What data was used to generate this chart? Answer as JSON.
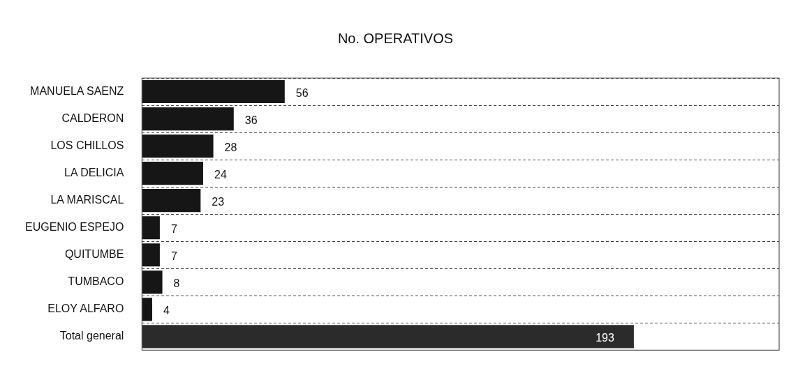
{
  "chart_data": {
    "type": "bar",
    "orientation": "horizontal",
    "title": "No. OPERATIVOS",
    "categories": [
      "MANUELA SAENZ",
      "CALDERON",
      "LOS CHILLOS",
      "LA DELICIA",
      "LA MARISCAL",
      "EUGENIO ESPEJO",
      "QUITUMBE",
      "TUMBACO",
      "ELOY ALFARO",
      "Total general"
    ],
    "values": [
      56,
      36,
      28,
      24,
      23,
      7,
      7,
      8,
      4,
      193
    ],
    "colors": [
      "#161616",
      "#161616",
      "#161616",
      "#161616",
      "#161616",
      "#161616",
      "#161616",
      "#161616",
      "#161616",
      "#2b2b2b"
    ],
    "xlim": [
      0,
      250
    ],
    "tick_labels": "y",
    "grid": "y",
    "line_style": "dashed",
    "data_labels": true,
    "legend": false
  }
}
